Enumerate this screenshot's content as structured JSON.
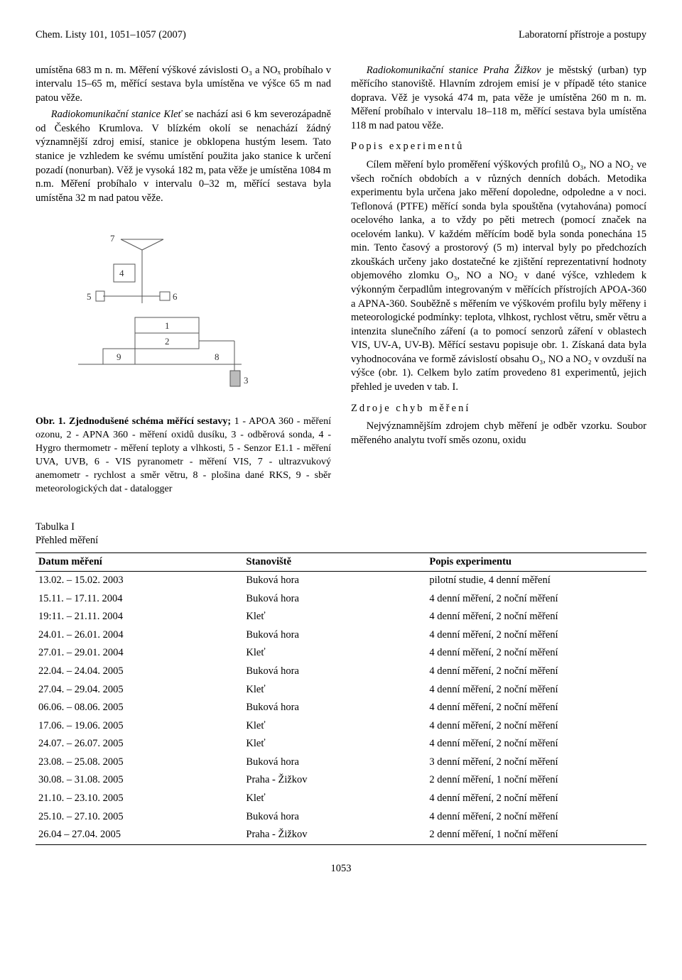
{
  "header": {
    "left": "Chem. Listy 101, 1051–1057 (2007)",
    "right": "Laboratorní přístroje a postupy"
  },
  "left_col": {
    "p1": "umístěna 683 m n. m. Měření výškové závislosti O₃ a NOₓ probíhalo v intervalu 15–65 m, měřící sestava byla umístěna ve výšce 65 m nad patou věže.",
    "p2_lead_italic": "Radiokomunikační stanice Kleť",
    "p2_rest": " se nachází asi 6 km severozápadně od Českého Krumlova. V blízkém okolí se nenachází žádný významnější zdroj emisí, stanice je obklopena hustým lesem. Tato stanice je vzhledem ke svému umístění použita jako stanice k určení pozadí (nonurban). Věž je vysoká 182 m, pata věže je umístěna 1084 m n.m. Měření probíhalo v intervalu 0–32 m, měřící sestava byla umístěna 32 m nad patou věže.",
    "fig_caption_lead": "Obr. 1. Zjednodušené schéma měřící sestavy;",
    "fig_caption_rest": " 1 - APOA 360 - měření ozonu, 2 - APNA 360 - měření oxidů dusíku, 3 - odběrová sonda, 4 - Hygro thermometr - měření teploty a vlhkosti, 5 - Senzor E1.1 - měření UVA, UVB, 6 - VIS pyranometr - měření VIS, 7 - ultrazvukový anemometr - rychlost a směr větru, 8 - plošina dané RKS, 9 - sběr meteorologických dat - datalogger"
  },
  "right_col": {
    "p1_lead_italic": "Radiokomunikační stanice Praha Žižkov",
    "p1_rest": " je městský (urban) typ měřícího stanoviště. Hlavním zdrojem emisí je v případě této stanice doprava. Věž je vysoká 474 m, pata věže je umístěna 260 m n. m. Měření probíhalo v intervalu 18–118 m, měřící sestava byla umístěna 118 m nad patou věže.",
    "h1": "Popis experimentů",
    "p2": "Cílem měření bylo proměření výškových profilů O₃, NO a NO₂ ve všech ročních obdobích a v různých denních dobách. Metodika experimentu byla určena jako měření dopoledne, odpoledne a v noci. Teflonová (PTFE) měřící sonda byla spouštěna (vytahována) pomocí ocelového lanka, a to vždy po pěti metrech (pomocí značek na ocelovém lanku). V každém měřícím bodě byla sonda ponechána 15 min. Tento časový a prostorový (5 m) interval byly po předchozích zkouškách určeny jako dostatečné ke zjištění reprezentativní hodnoty objemového zlomku O₃, NO a NO₂ v dané výšce, vzhledem k výkonným čerpadlům integrovaným v měřících přístrojích APOA-360 a APNA-360. Souběžně s měřením ve výškovém profilu byly měřeny i meteorologické podmínky: teplota, vlhkost, rychlost větru, směr větru a intenzita slunečního záření (a to pomocí senzorů záření v oblastech VIS, UV-A, UV-B). Měřící sestavu popisuje obr. 1. Získaná data byla vyhodnocována ve formě závislostí obsahu O₃, NO a NO₂ v ovzduší na výšce (obr. 1). Celkem bylo zatím provedeno 81 experimentů, jejich přehled je uveden v tab. I.",
    "h2": "Zdroje chyb měření",
    "p3": "Nejvýznamnějším zdrojem chyb měření je odběr vzorku. Soubor měřeného analytu tvoří směs ozonu, oxidu"
  },
  "diagram": {
    "labels": {
      "1": "1",
      "2": "2",
      "3": "3",
      "4": "4",
      "5": "5",
      "6": "6",
      "7": "7",
      "8": "8",
      "9": "9"
    },
    "stroke": "#555",
    "fill_none": "none",
    "font_size": 13
  },
  "table": {
    "title_line1": "Tabulka I",
    "title_line2": "Přehled měření",
    "columns": [
      "Datum měření",
      "Stanoviště",
      "Popis experimentu"
    ],
    "rows": [
      [
        "13.02. – 15.02. 2003",
        "Buková hora",
        "pilotní studie, 4 denní měření"
      ],
      [
        "15.11. – 17.11. 2004",
        "Buková hora",
        "4 denní měření, 2 noční měření"
      ],
      [
        "19:11. – 21.11. 2004",
        "Kleť",
        "4 denní měření, 2 noční měření"
      ],
      [
        "24.01. – 26.01. 2004",
        "Buková hora",
        "4 denní měření, 2 noční měření"
      ],
      [
        "27.01. – 29.01. 2004",
        "Kleť",
        "4 denní měření, 2 noční měření"
      ],
      [
        "22.04. – 24.04. 2005",
        "Buková hora",
        "4 denní měření, 2 noční měření"
      ],
      [
        "27.04. – 29.04. 2005",
        "Kleť",
        "4 denní měření, 2 noční měření"
      ],
      [
        "06.06. – 08.06. 2005",
        "Buková hora",
        "4 denní měření, 2 noční měření"
      ],
      [
        "17.06. – 19.06. 2005",
        "Kleť",
        "4 denní měření, 2 noční měření"
      ],
      [
        "24.07. – 26.07. 2005",
        "Kleť",
        "4 denní měření, 2 noční měření"
      ],
      [
        "23.08. – 25.08. 2005",
        "Buková hora",
        "3 denní měření, 2 noční měření"
      ],
      [
        "30.08. – 31.08. 2005",
        "Praha - Žižkov",
        "2 denní měření, 1 noční měření"
      ],
      [
        "21.10. – 23.10. 2005",
        "Kleť",
        "4 denní měření, 2 noční měření"
      ],
      [
        "25.10. – 27.10. 2005",
        "Buková hora",
        "4 denní měření, 2 noční měření"
      ],
      [
        "26.04 – 27.04. 2005",
        "Praha - Žižkov",
        "2 denní měření, 1 noční měření"
      ]
    ]
  },
  "page_number": "1053"
}
